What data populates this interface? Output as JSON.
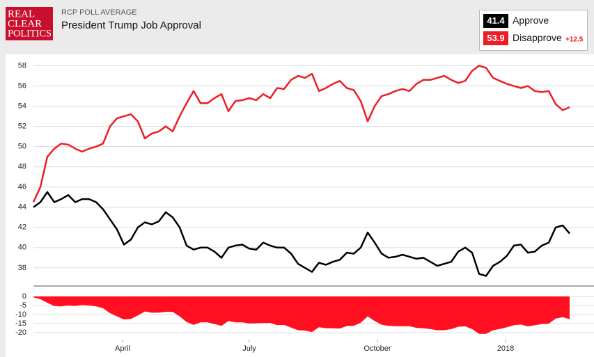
{
  "logo": [
    "REAL",
    "CLEAR",
    "POLITICS"
  ],
  "chart_data": [
    {
      "type": "line",
      "kicker": "RCP POLL AVERAGE",
      "title": "President Trump Job Approval",
      "latest": [
        41.4,
        53.9
      ],
      "spread_label": "+12.5",
      "x": [
        7,
        12,
        17,
        22,
        27,
        32,
        37,
        42,
        47,
        52,
        57,
        62,
        67,
        72,
        77,
        82,
        87,
        92,
        97,
        102,
        107,
        112,
        117,
        122,
        127,
        132,
        137,
        142,
        147,
        152,
        157,
        162,
        167,
        172,
        177,
        182,
        187,
        192,
        197,
        202,
        207,
        212,
        217,
        222,
        227,
        232,
        237,
        242,
        247,
        252,
        257,
        262,
        267,
        272,
        277,
        282,
        287,
        292,
        297,
        302,
        307,
        312,
        317,
        322,
        327,
        332,
        337,
        342,
        347,
        352,
        357,
        362,
        367,
        372,
        377,
        382,
        387,
        392
      ],
      "xlim": [
        7,
        392
      ],
      "ylim": [
        36.2,
        59
      ],
      "yticks": [
        38,
        40,
        42,
        44,
        46,
        48,
        50,
        52,
        54,
        56,
        58
      ],
      "grid": true,
      "series": [
        {
          "name": "Approve",
          "color": "#000000",
          "values": [
            44.0,
            44.5,
            45.5,
            44.5,
            44.8,
            45.2,
            44.5,
            44.8,
            44.8,
            44.5,
            43.8,
            42.8,
            41.8,
            40.3,
            40.8,
            42,
            42.5,
            42.3,
            42.6,
            43.5,
            43,
            42,
            40.2,
            39.8,
            40,
            40,
            39.6,
            39,
            40,
            40.2,
            40.3,
            39.9,
            39.8,
            40.5,
            40.2,
            40,
            40,
            39.4,
            38.4,
            38,
            37.6,
            38.5,
            38.3,
            38.6,
            38.8,
            39.5,
            39.4,
            40,
            41.5,
            40.5,
            39.4,
            39,
            39.1,
            39.3,
            39.1,
            38.9,
            39,
            38.6,
            38.2,
            38.4,
            38.6,
            39.6,
            40,
            39.5,
            37.4,
            37.2,
            38.2,
            38.6,
            39.2,
            40.2,
            40.3,
            39.5,
            39.6,
            40.2,
            40.5,
            42,
            42.2,
            41.4
          ]
        },
        {
          "name": "Disapprove",
          "color": "#ee1c25",
          "values": [
            44.5,
            46,
            49,
            49.8,
            50.3,
            50.2,
            49.8,
            49.5,
            49.8,
            50,
            50.3,
            52,
            52.8,
            53,
            53.2,
            52.5,
            50.8,
            51.3,
            51.5,
            52,
            51.5,
            53,
            54.3,
            55.5,
            54.3,
            54.3,
            54.8,
            55.2,
            53.5,
            54.5,
            54.6,
            54.8,
            54.6,
            55.2,
            54.8,
            55.8,
            55.7,
            56.6,
            57,
            56.8,
            57.2,
            55.5,
            55.8,
            56.2,
            56.5,
            55.8,
            55.6,
            54.5,
            52.5,
            54,
            55,
            55.2,
            55.5,
            55.7,
            55.5,
            56.2,
            56.6,
            56.6,
            56.8,
            57,
            56.6,
            56.3,
            56.5,
            57.5,
            58,
            57.8,
            56.8,
            56.5,
            56.2,
            56,
            55.8,
            56,
            55.5,
            55.4,
            55.5,
            54.2,
            53.6,
            53.9
          ]
        }
      ]
    },
    {
      "type": "area",
      "x": [
        7,
        12,
        17,
        22,
        27,
        32,
        37,
        42,
        47,
        52,
        57,
        62,
        67,
        72,
        77,
        82,
        87,
        92,
        97,
        102,
        107,
        112,
        117,
        122,
        127,
        132,
        137,
        142,
        147,
        152,
        157,
        162,
        167,
        172,
        177,
        182,
        187,
        192,
        197,
        202,
        207,
        212,
        217,
        222,
        227,
        232,
        237,
        242,
        247,
        252,
        257,
        262,
        267,
        272,
        277,
        282,
        287,
        292,
        297,
        302,
        307,
        312,
        317,
        322,
        327,
        332,
        337,
        342,
        347,
        352,
        357,
        362,
        367,
        372,
        377,
        382,
        387,
        392
      ],
      "values": [
        -0.5,
        -1.5,
        -3.5,
        -5.3,
        -5.5,
        -5,
        -5.3,
        -4.7,
        -5,
        -5.5,
        -6.5,
        -9.2,
        -11,
        -12.7,
        -12.4,
        -10.5,
        -8.3,
        -9,
        -8.9,
        -8.5,
        -8.5,
        -11,
        -14.1,
        -15.7,
        -14.3,
        -14.3,
        -15.2,
        -16.2,
        -13.5,
        -14.3,
        -14.3,
        -14.9,
        -14.8,
        -14.7,
        -14.6,
        -15.8,
        -15.7,
        -17.2,
        -18.6,
        -18.8,
        -19.6,
        -17,
        -17.5,
        -17.6,
        -17.7,
        -16.3,
        -16.2,
        -14.5,
        -11,
        -13.5,
        -15.6,
        -16.2,
        -16.4,
        -16.4,
        -16.4,
        -17.3,
        -17.6,
        -18,
        -18.6,
        -18.6,
        -18,
        -16.7,
        -16.5,
        -18,
        -20.6,
        -20.6,
        -18.6,
        -17.9,
        -17,
        -15.8,
        -15.5,
        -16.5,
        -15.9,
        -15.2,
        -15,
        -12.2,
        -11.4,
        -12.5
      ],
      "color": "#ff0f1f",
      "xlim": [
        7,
        392
      ],
      "xticks": [
        {
          "value": 71,
          "label": "April"
        },
        {
          "value": 162,
          "label": "July"
        },
        {
          "value": 254,
          "label": "October"
        },
        {
          "value": 346,
          "label": "2018"
        }
      ],
      "ylim": [
        -23.8,
        4.6
      ],
      "yticks": [
        0,
        -5,
        -10,
        -15,
        -20
      ],
      "grid": true
    }
  ]
}
